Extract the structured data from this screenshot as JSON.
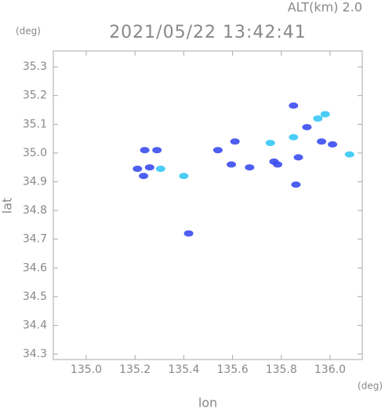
{
  "header": {
    "alt": "ALT(km) 2.0",
    "y_unit": "(deg)",
    "x_unit": "(deg)"
  },
  "chart_data": {
    "type": "scatter",
    "title": "2021/05/22 13:42:41",
    "x_label": "lon",
    "y_label": "lat",
    "xlim": [
      134.865,
      136.132
    ],
    "ylim": [
      34.281,
      35.355
    ],
    "xticks": [
      {
        "value": 135.0,
        "label": "135.0"
      },
      135.2,
      135.4,
      135.6,
      135.8,
      {
        "value": 136.0,
        "label": "136.0"
      }
    ],
    "yticks": [
      34.3,
      34.4,
      34.5,
      34.6,
      34.7,
      34.8,
      34.9,
      {
        "value": 35.0,
        "label": "35.0"
      },
      35.1,
      35.2,
      35.3
    ],
    "series": [
      {
        "color": "#3b4cf0",
        "x": [
          135.24,
          135.29,
          135.21,
          135.26,
          135.235,
          135.42,
          135.54,
          135.61,
          135.595,
          135.67,
          135.77,
          135.785,
          135.87,
          135.965,
          136.01,
          135.85,
          135.86,
          135.905
        ],
        "y": [
          35.01,
          35.01,
          34.945,
          34.95,
          34.92,
          34.72,
          35.01,
          35.04,
          34.96,
          34.95,
          34.97,
          34.96,
          34.985,
          35.04,
          35.03,
          35.165,
          34.89,
          35.09
        ]
      },
      {
        "color": "#35c8f5",
        "x": [
          135.305,
          135.4,
          135.755,
          135.85,
          135.95,
          135.98,
          136.08
        ],
        "y": [
          34.945,
          34.92,
          35.035,
          35.055,
          35.12,
          35.135,
          34.995
        ]
      }
    ]
  }
}
